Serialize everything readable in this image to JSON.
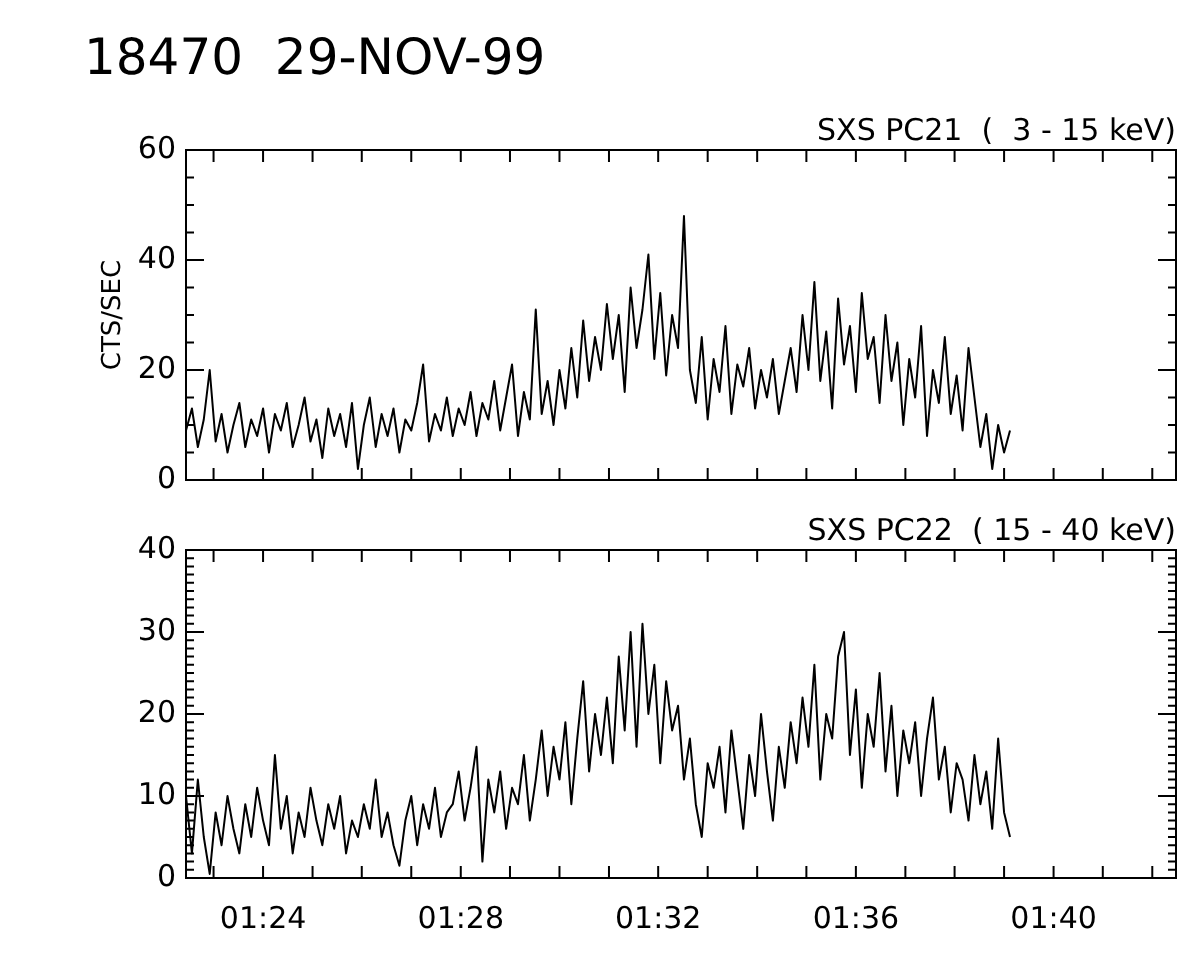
{
  "chart_data": [
    {
      "type": "line",
      "title": "18470  29-NOV-99",
      "subtitle": "SXS PC21  (  3 - 15 keV)",
      "ylabel": "CTS/SEC",
      "tick_labels": "y",
      "xlim": [
        1.374,
        1.708
      ],
      "xticks": [
        {
          "value": 1.3833,
          "label": null
        },
        {
          "value": 1.4,
          "label": null
        },
        {
          "value": 1.4167,
          "label": null
        },
        {
          "value": 1.4333,
          "label": null
        },
        {
          "value": 1.45,
          "label": null
        },
        {
          "value": 1.4667,
          "label": null
        },
        {
          "value": 1.4833,
          "label": null
        },
        {
          "value": 1.5,
          "label": null
        },
        {
          "value": 1.5167,
          "label": null
        },
        {
          "value": 1.5333,
          "label": null
        },
        {
          "value": 1.55,
          "label": null
        },
        {
          "value": 1.5667,
          "label": null
        },
        {
          "value": 1.5833,
          "label": null
        },
        {
          "value": 1.6,
          "label": null
        },
        {
          "value": 1.6167,
          "label": null
        },
        {
          "value": 1.6333,
          "label": null
        },
        {
          "value": 1.65,
          "label": null
        },
        {
          "value": 1.6667,
          "label": null
        },
        {
          "value": 1.6833,
          "label": null
        },
        {
          "value": 1.7,
          "label": null
        }
      ],
      "ylim": [
        0,
        60
      ],
      "yticks": [
        0,
        {
          "value": 5,
          "label": null
        },
        {
          "value": 10,
          "label": null
        },
        {
          "value": 15,
          "label": null
        },
        20,
        {
          "value": 25,
          "label": null
        },
        {
          "value": 30,
          "label": null
        },
        {
          "value": 35,
          "label": null
        },
        40,
        {
          "value": 45,
          "label": null
        },
        {
          "value": 50,
          "label": null
        },
        {
          "value": 55,
          "label": null
        },
        60
      ],
      "x": [
        1.374,
        1.376,
        1.378,
        1.38,
        1.382,
        1.384,
        1.386,
        1.388,
        1.39,
        1.392,
        1.394,
        1.396,
        1.398,
        1.4,
        1.402,
        1.404,
        1.406,
        1.408,
        1.41,
        1.412,
        1.414,
        1.416,
        1.418,
        1.42,
        1.422,
        1.424,
        1.426,
        1.428,
        1.43,
        1.432,
        1.434,
        1.436,
        1.438,
        1.44,
        1.442,
        1.444,
        1.446,
        1.448,
        1.45,
        1.452,
        1.454,
        1.456,
        1.458,
        1.46,
        1.462,
        1.464,
        1.466,
        1.468,
        1.47,
        1.472,
        1.474,
        1.476,
        1.478,
        1.48,
        1.482,
        1.484,
        1.486,
        1.488,
        1.49,
        1.492,
        1.494,
        1.496,
        1.498,
        1.5,
        1.502,
        1.504,
        1.506,
        1.508,
        1.51,
        1.512,
        1.514,
        1.516,
        1.518,
        1.52,
        1.522,
        1.524,
        1.526,
        1.528,
        1.53,
        1.532,
        1.534,
        1.536,
        1.538,
        1.54,
        1.542,
        1.544,
        1.546,
        1.548,
        1.55,
        1.552,
        1.554,
        1.556,
        1.558,
        1.56,
        1.562,
        1.564,
        1.566,
        1.568,
        1.57,
        1.572,
        1.574,
        1.576,
        1.578,
        1.58,
        1.582,
        1.584,
        1.586,
        1.588,
        1.59,
        1.592,
        1.594,
        1.596,
        1.598,
        1.6,
        1.602,
        1.604,
        1.606,
        1.608,
        1.61,
        1.612,
        1.614,
        1.616,
        1.618,
        1.62,
        1.622,
        1.624,
        1.626,
        1.628,
        1.63,
        1.632,
        1.634,
        1.636,
        1.638,
        1.64,
        1.642,
        1.644,
        1.646,
        1.648,
        1.65,
        1.652
      ],
      "series": [
        {
          "color": "#000000",
          "values": [
            9,
            13,
            6,
            11,
            20,
            7,
            12,
            5,
            10,
            14,
            6,
            11,
            8,
            13,
            5,
            12,
            9,
            14,
            6,
            10,
            15,
            7,
            11,
            4,
            13,
            8,
            12,
            6,
            14,
            2,
            10,
            15,
            6,
            12,
            8,
            13,
            5,
            11,
            9,
            14,
            21,
            7,
            12,
            9,
            15,
            8,
            13,
            10,
            16,
            8,
            14,
            11,
            18,
            9,
            15,
            21,
            8,
            16,
            11,
            31,
            12,
            18,
            10,
            20,
            13,
            24,
            15,
            29,
            18,
            26,
            20,
            32,
            22,
            30,
            16,
            35,
            24,
            31,
            41,
            22,
            34,
            19,
            30,
            24,
            48,
            20,
            14,
            26,
            11,
            22,
            16,
            28,
            12,
            21,
            17,
            24,
            13,
            20,
            15,
            22,
            12,
            18,
            24,
            16,
            30,
            20,
            36,
            18,
            27,
            13,
            33,
            21,
            28,
            16,
            34,
            22,
            26,
            14,
            30,
            18,
            25,
            10,
            22,
            15,
            28,
            8,
            20,
            14,
            26,
            12,
            19,
            9,
            24,
            15,
            6,
            12,
            2,
            10,
            5,
            9
          ]
        }
      ]
    },
    {
      "type": "line",
      "subtitle": "SXS PC22  ( 15 - 40 keV)",
      "xlim": [
        1.374,
        1.708
      ],
      "xticks": [
        {
          "value": 1.3833,
          "label": null
        },
        {
          "value": 1.4,
          "label": "01:24"
        },
        {
          "value": 1.4167,
          "label": null
        },
        {
          "value": 1.4333,
          "label": null
        },
        {
          "value": 1.45,
          "label": null
        },
        {
          "value": 1.4667,
          "label": "01:28"
        },
        {
          "value": 1.4833,
          "label": null
        },
        {
          "value": 1.5,
          "label": null
        },
        {
          "value": 1.5167,
          "label": null
        },
        {
          "value": 1.5333,
          "label": "01:32"
        },
        {
          "value": 1.55,
          "label": null
        },
        {
          "value": 1.5667,
          "label": null
        },
        {
          "value": 1.5833,
          "label": null
        },
        {
          "value": 1.6,
          "label": "01:36"
        },
        {
          "value": 1.6167,
          "label": null
        },
        {
          "value": 1.6333,
          "label": null
        },
        {
          "value": 1.65,
          "label": null
        },
        {
          "value": 1.6667,
          "label": "01:40"
        },
        {
          "value": 1.6833,
          "label": null
        },
        {
          "value": 1.7,
          "label": null
        }
      ],
      "ylim": [
        0,
        40
      ],
      "yticks": [
        0,
        {
          "value": 1,
          "label": null
        },
        {
          "value": 2,
          "label": null
        },
        {
          "value": 3,
          "label": null
        },
        {
          "value": 4,
          "label": null
        },
        {
          "value": 5,
          "label": null
        },
        {
          "value": 6,
          "label": null
        },
        {
          "value": 7,
          "label": null
        },
        {
          "value": 8,
          "label": null
        },
        {
          "value": 9,
          "label": null
        },
        10,
        {
          "value": 11,
          "label": null
        },
        {
          "value": 12,
          "label": null
        },
        {
          "value": 13,
          "label": null
        },
        {
          "value": 14,
          "label": null
        },
        {
          "value": 15,
          "label": null
        },
        {
          "value": 16,
          "label": null
        },
        {
          "value": 17,
          "label": null
        },
        {
          "value": 18,
          "label": null
        },
        {
          "value": 19,
          "label": null
        },
        20,
        {
          "value": 21,
          "label": null
        },
        {
          "value": 22,
          "label": null
        },
        {
          "value": 23,
          "label": null
        },
        {
          "value": 24,
          "label": null
        },
        {
          "value": 25,
          "label": null
        },
        {
          "value": 26,
          "label": null
        },
        {
          "value": 27,
          "label": null
        },
        {
          "value": 28,
          "label": null
        },
        {
          "value": 29,
          "label": null
        },
        30,
        {
          "value": 31,
          "label": null
        },
        {
          "value": 32,
          "label": null
        },
        {
          "value": 33,
          "label": null
        },
        {
          "value": 34,
          "label": null
        },
        {
          "value": 35,
          "label": null
        },
        {
          "value": 36,
          "label": null
        },
        {
          "value": 37,
          "label": null
        },
        {
          "value": 38,
          "label": null
        },
        {
          "value": 39,
          "label": null
        },
        40
      ],
      "x": [
        1.374,
        1.376,
        1.378,
        1.38,
        1.382,
        1.384,
        1.386,
        1.388,
        1.39,
        1.392,
        1.394,
        1.396,
        1.398,
        1.4,
        1.402,
        1.404,
        1.406,
        1.408,
        1.41,
        1.412,
        1.414,
        1.416,
        1.418,
        1.42,
        1.422,
        1.424,
        1.426,
        1.428,
        1.43,
        1.432,
        1.434,
        1.436,
        1.438,
        1.44,
        1.442,
        1.444,
        1.446,
        1.448,
        1.45,
        1.452,
        1.454,
        1.456,
        1.458,
        1.46,
        1.462,
        1.464,
        1.466,
        1.468,
        1.47,
        1.472,
        1.474,
        1.476,
        1.478,
        1.48,
        1.482,
        1.484,
        1.486,
        1.488,
        1.49,
        1.492,
        1.494,
        1.496,
        1.498,
        1.5,
        1.502,
        1.504,
        1.506,
        1.508,
        1.51,
        1.512,
        1.514,
        1.516,
        1.518,
        1.52,
        1.522,
        1.524,
        1.526,
        1.528,
        1.53,
        1.532,
        1.534,
        1.536,
        1.538,
        1.54,
        1.542,
        1.544,
        1.546,
        1.548,
        1.55,
        1.552,
        1.554,
        1.556,
        1.558,
        1.56,
        1.562,
        1.564,
        1.566,
        1.568,
        1.57,
        1.572,
        1.574,
        1.576,
        1.578,
        1.58,
        1.582,
        1.584,
        1.586,
        1.588,
        1.59,
        1.592,
        1.594,
        1.596,
        1.598,
        1.6,
        1.602,
        1.604,
        1.606,
        1.608,
        1.61,
        1.612,
        1.614,
        1.616,
        1.618,
        1.62,
        1.622,
        1.624,
        1.626,
        1.628,
        1.63,
        1.632,
        1.634,
        1.636,
        1.638,
        1.64,
        1.642,
        1.644,
        1.646,
        1.648,
        1.65,
        1.652
      ],
      "series": [
        {
          "color": "#000000",
          "values": [
            10,
            3,
            12,
            5,
            0.5,
            8,
            4,
            10,
            6,
            3,
            9,
            5,
            11,
            7,
            4,
            15,
            6,
            10,
            3,
            8,
            5,
            11,
            7,
            4,
            9,
            6,
            10,
            3,
            7,
            5,
            9,
            6,
            12,
            5,
            8,
            4,
            1.5,
            7,
            10,
            4,
            9,
            6,
            11,
            5,
            8,
            9,
            13,
            7,
            11,
            16,
            2,
            12,
            8,
            13,
            6,
            11,
            9,
            15,
            7,
            12,
            18,
            10,
            16,
            12,
            19,
            9,
            17,
            24,
            13,
            20,
            15,
            22,
            14,
            27,
            18,
            30,
            16,
            31,
            20,
            26,
            14,
            24,
            18,
            21,
            12,
            17,
            9,
            5,
            14,
            11,
            16,
            8,
            18,
            12,
            6,
            15,
            10,
            20,
            13,
            7,
            16,
            11,
            19,
            14,
            22,
            16,
            26,
            12,
            20,
            17,
            27,
            30,
            15,
            23,
            11,
            20,
            16,
            25,
            13,
            21,
            10,
            18,
            14,
            19,
            10,
            17,
            22,
            12,
            16,
            8,
            14,
            12,
            7,
            15,
            9,
            13,
            6,
            17,
            8,
            5
          ]
        }
      ]
    }
  ]
}
